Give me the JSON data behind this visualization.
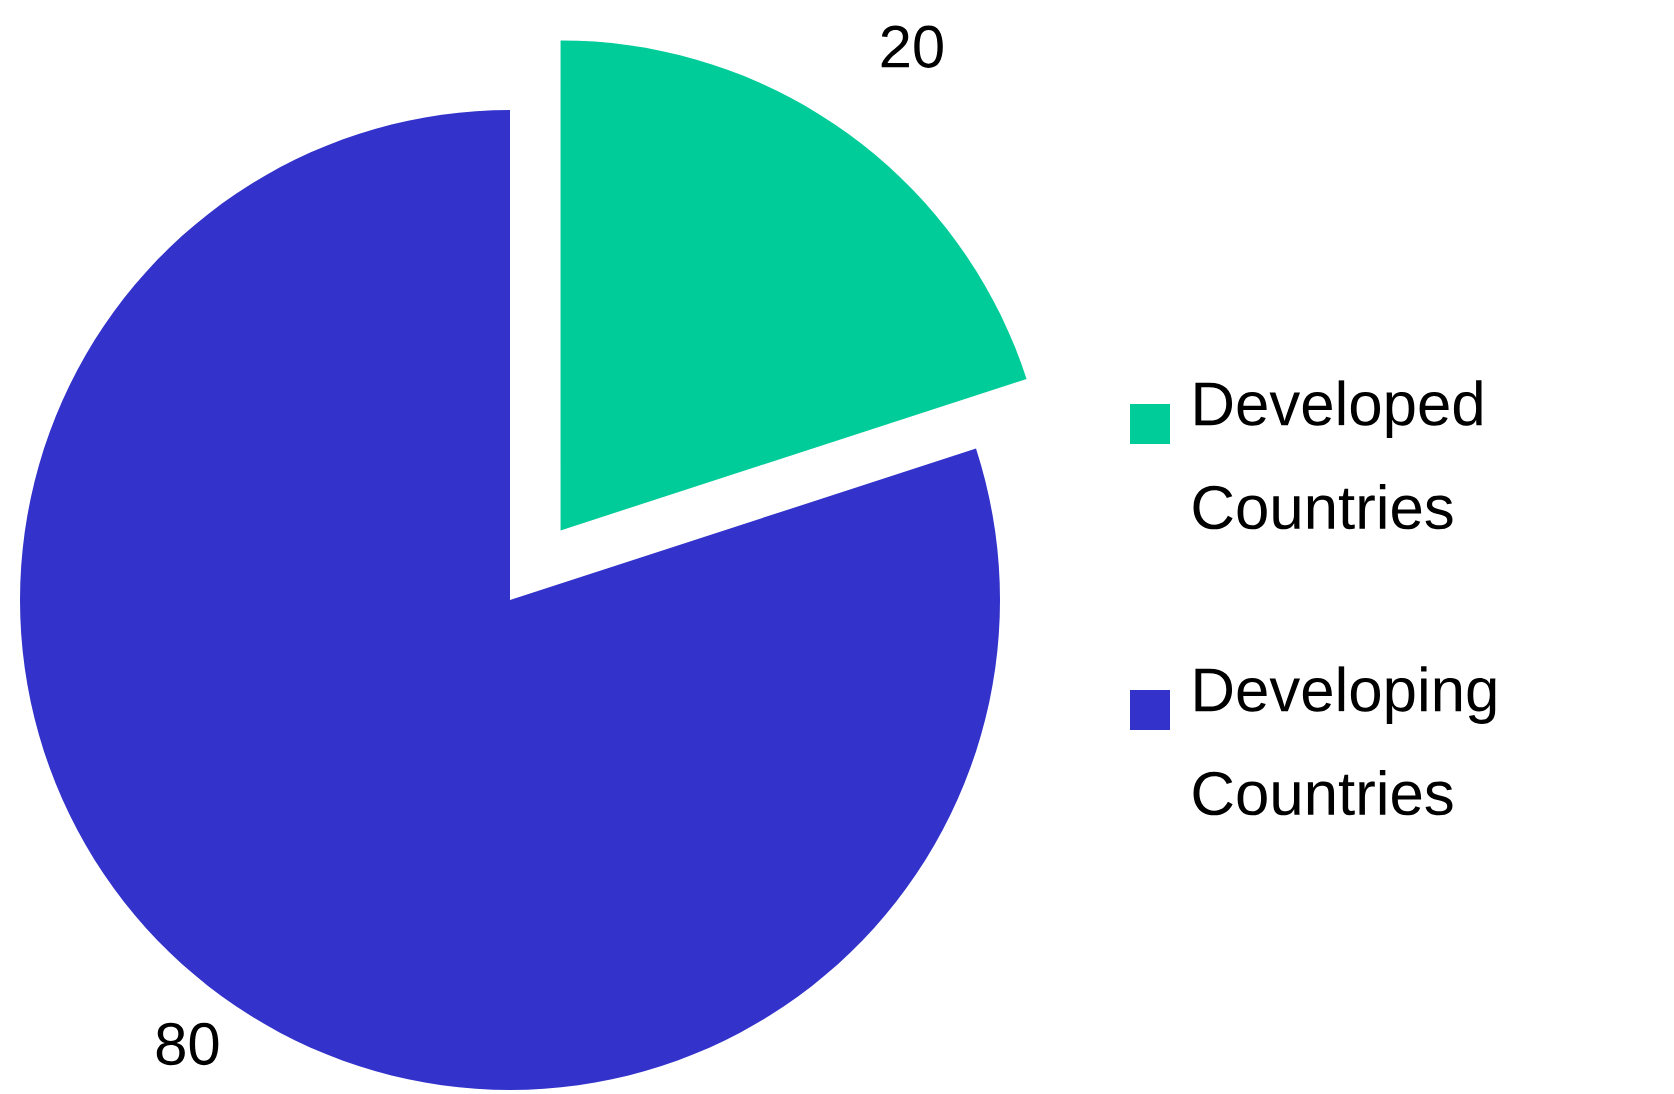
{
  "chart_data": {
    "type": "pie",
    "categories": [
      "Developed Countries",
      "Developing Countries"
    ],
    "values": [
      20,
      80
    ],
    "colors": [
      "#00cc99",
      "#3333cc"
    ],
    "data_labels": true,
    "legend": "right"
  }
}
